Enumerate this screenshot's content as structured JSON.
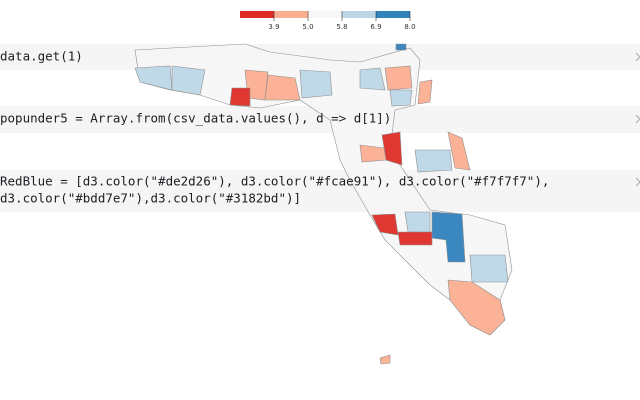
{
  "legend": {
    "ticks": [
      "3.9",
      "5.0",
      "5.8",
      "6.9",
      "8.0"
    ],
    "colors": [
      "#de2d26",
      "#fcae91",
      "#f7f7f7",
      "#bdd7e7",
      "#3182bd"
    ]
  },
  "cells": [
    {
      "lines": [
        "data.get(1)"
      ]
    },
    {
      "lines": [
        "popunder5 = Array.from(csv_data.values(), d => d[1])"
      ]
    },
    {
      "lines": [
        "RedBlue = [d3.color(\"#de2d26\"), d3.color(\"#fcae91\"), d3.color(\"#f7f7f7\"),",
        "d3.color(\"#bdd7e7\"),d3.color(\"#3182bd\")]"
      ]
    }
  ]
}
